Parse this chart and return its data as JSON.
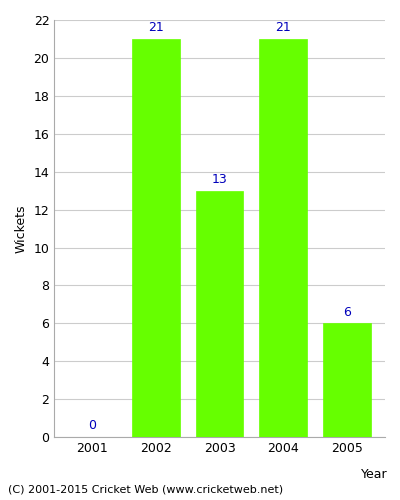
{
  "years": [
    "2001",
    "2002",
    "2003",
    "2004",
    "2005"
  ],
  "values": [
    0,
    21,
    13,
    21,
    6
  ],
  "bar_color": "#66ff00",
  "bar_edge_color": "#66ff00",
  "xlabel": "Year",
  "ylabel": "Wickets",
  "ylim": [
    0,
    22
  ],
  "yticks": [
    0,
    2,
    4,
    6,
    8,
    10,
    12,
    14,
    16,
    18,
    20,
    22
  ],
  "label_color": "#0000bb",
  "label_fontsize": 9,
  "axis_label_fontsize": 9,
  "tick_fontsize": 9,
  "footer_text": "(C) 2001-2015 Cricket Web (www.cricketweb.net)",
  "footer_fontsize": 8,
  "bg_color": "#ffffff",
  "grid_color": "#cccccc",
  "bar_width": 0.75
}
